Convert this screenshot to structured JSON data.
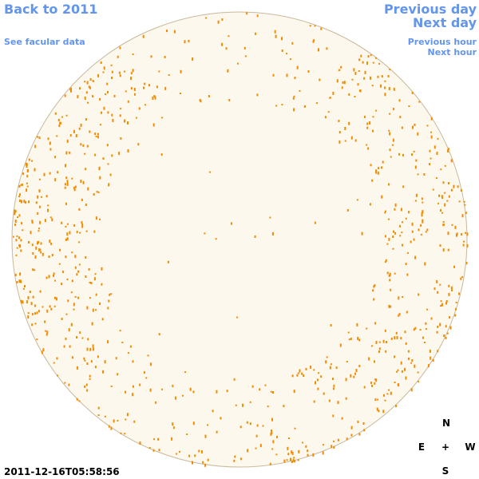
{
  "nav": {
    "back": "Back to 2011",
    "facular": "See facular data",
    "previous_day": "Previous day",
    "next_day": "Next day",
    "previous_hour": "Previous hour",
    "next_hour": "Next hour"
  },
  "timestamp": "2011-12-16T05:58:56",
  "compass": {
    "north": "N",
    "east": "E",
    "center": "+",
    "west": "W",
    "south": "S"
  }
}
